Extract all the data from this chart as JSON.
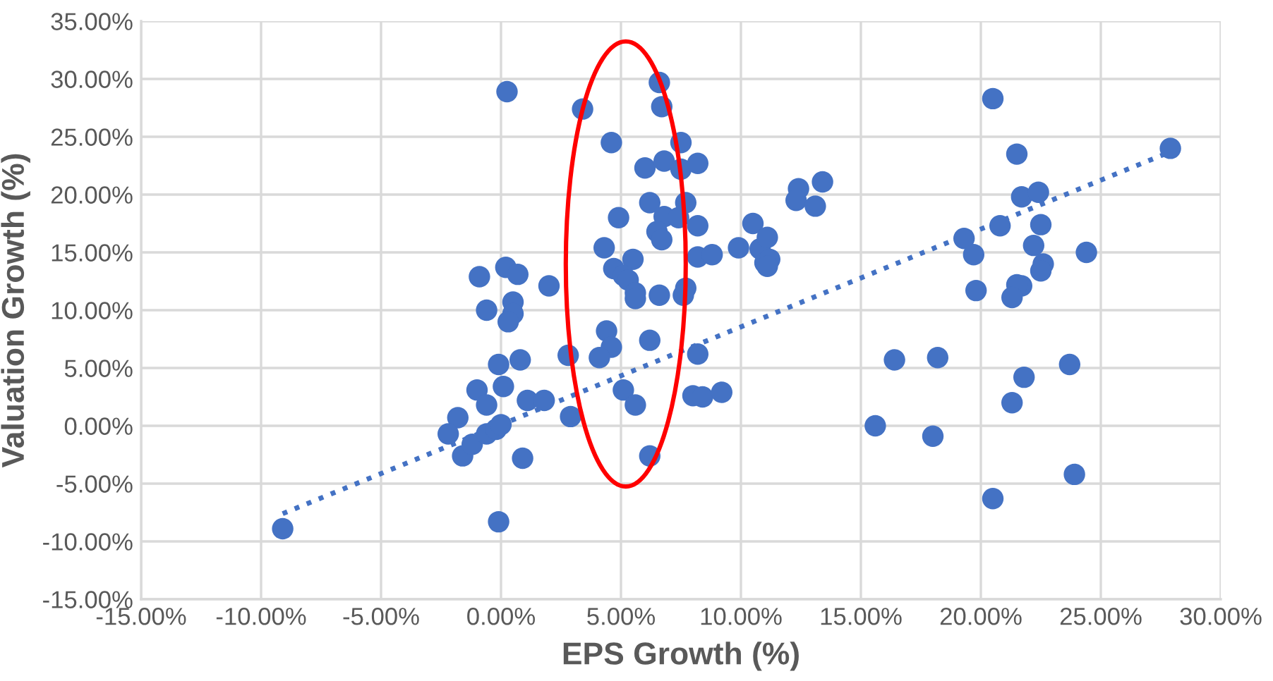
{
  "chart_data": {
    "type": "scatter",
    "xlabel": "EPS Growth (%)",
    "ylabel": "Valuation Growth (%)",
    "xlim": [
      -15,
      30
    ],
    "ylim": [
      -15,
      35
    ],
    "xticks": [
      {
        "value": -15,
        "label": "-15.00%"
      },
      {
        "value": -10,
        "label": "-10.00%"
      },
      {
        "value": -5,
        "label": "-5.00%"
      },
      {
        "value": 0,
        "label": "0.00%"
      },
      {
        "value": 5,
        "label": "5.00%"
      },
      {
        "value": 10,
        "label": "10.00%"
      },
      {
        "value": 15,
        "label": "15.00%"
      },
      {
        "value": 20,
        "label": "20.00%"
      },
      {
        "value": 25,
        "label": "25.00%"
      },
      {
        "value": 30,
        "label": "30.00%"
      }
    ],
    "yticks": [
      {
        "value": -15,
        "label": "-15.00%"
      },
      {
        "value": -10,
        "label": "-10.00%"
      },
      {
        "value": -5,
        "label": "-5.00%"
      },
      {
        "value": 0,
        "label": "0.00%"
      },
      {
        "value": 5,
        "label": "5.00%"
      },
      {
        "value": 10,
        "label": "10.00%"
      },
      {
        "value": 15,
        "label": "15.00%"
      },
      {
        "value": 20,
        "label": "20.00%"
      },
      {
        "value": 25,
        "label": "25.00%"
      },
      {
        "value": 30,
        "label": "30.00%"
      },
      {
        "value": 35,
        "label": "35.00%"
      }
    ],
    "grid": true,
    "marker": "circle",
    "series": [
      {
        "color": "#4472c4",
        "x": [
          0.25,
          3.4,
          6.6,
          6.7,
          4.6,
          7.5,
          6.0,
          6.8,
          7.5,
          8.2,
          6.2,
          7.7,
          6.8,
          7.4,
          4.9,
          8.2,
          6.5,
          6.7,
          4.3,
          5.5,
          4.7,
          5.1,
          5.3,
          5.6,
          5.6,
          6.6,
          7.7,
          7.6,
          8.2,
          8.8,
          4.4,
          4.6,
          4.1,
          2.8,
          6.2,
          8.2,
          5.1,
          5.6,
          2.9,
          6.2,
          8.0,
          8.4,
          9.2,
          9.9,
          10.5,
          10.8,
          11.1,
          11.0,
          11.2,
          11.1,
          12.4,
          12.3,
          13.1,
          13.4,
          -0.9,
          -0.6,
          0.2,
          0.7,
          0.5,
          0.5,
          0.3,
          2.0,
          -0.1,
          0.8,
          -1.0,
          -0.6,
          0.1,
          1.1,
          1.8,
          -1.8,
          -2.2,
          -1.6,
          -1.2,
          -0.6,
          -0.2,
          0.0,
          0.9,
          -0.1,
          -9.1,
          15.6,
          16.4,
          18.2,
          18.0,
          20.5,
          21.5,
          21.7,
          22.4,
          20.8,
          22.5,
          19.3,
          19.7,
          22.2,
          24.4,
          22.6,
          22.5,
          19.8,
          21.7,
          21.5,
          21.3,
          23.7,
          21.8,
          21.3,
          20.5,
          23.9,
          27.9
        ],
        "values": [
          28.9,
          27.4,
          29.7,
          27.6,
          24.5,
          24.5,
          22.3,
          22.9,
          22.2,
          22.7,
          19.3,
          19.3,
          18.1,
          18.0,
          18.0,
          17.3,
          16.8,
          16.1,
          15.4,
          14.4,
          13.6,
          13.0,
          12.6,
          11.5,
          11.0,
          11.3,
          11.9,
          11.3,
          14.6,
          14.8,
          8.2,
          6.8,
          5.9,
          6.1,
          7.4,
          6.2,
          3.1,
          1.8,
          0.8,
          -2.6,
          2.6,
          2.5,
          2.9,
          15.4,
          17.5,
          15.3,
          16.3,
          14.1,
          14.4,
          13.8,
          20.5,
          19.5,
          19.0,
          21.1,
          12.9,
          10.0,
          13.7,
          13.1,
          10.7,
          9.7,
          9.0,
          12.1,
          5.3,
          5.7,
          3.1,
          1.8,
          3.4,
          2.2,
          2.2,
          0.7,
          -0.7,
          -2.6,
          -1.6,
          -0.7,
          -0.3,
          0.1,
          -2.8,
          -8.3,
          -8.9,
          0.0,
          5.7,
          5.9,
          -0.9,
          28.3,
          23.5,
          19.8,
          20.2,
          17.3,
          17.4,
          16.2,
          14.8,
          15.6,
          15.0,
          14.0,
          13.4,
          11.7,
          12.1,
          12.2,
          11.1,
          5.3,
          4.2,
          2.0,
          -6.3,
          -4.2,
          24.0
        ]
      },
      {
        "type": "line",
        "color": "#4472c4",
        "line_style": "dotted",
        "marker": "none",
        "x": [
          -9.1,
          27.9
        ],
        "values": [
          -7.6,
          23.7
        ]
      }
    ]
  }
}
